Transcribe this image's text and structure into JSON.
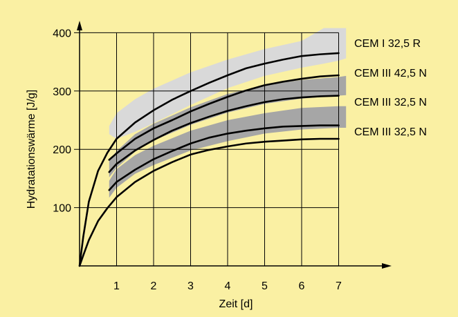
{
  "chart_data": {
    "type": "line",
    "title": "",
    "xlabel": "Zeit [d]",
    "ylabel": "Hydratationswärme [J/g]",
    "xlim": [
      0,
      7.5
    ],
    "ylim": [
      0,
      420
    ],
    "x_ticks": [
      {
        "value": 1,
        "label": "1"
      },
      {
        "value": 2,
        "label": "2"
      },
      {
        "value": 3,
        "label": "3"
      },
      {
        "value": 4,
        "label": "4"
      },
      {
        "value": 5,
        "label": "5"
      },
      {
        "value": 6,
        "label": "6"
      },
      {
        "value": 7,
        "label": "7"
      }
    ],
    "y_ticks": [
      {
        "value": 100,
        "label": "100"
      },
      {
        "value": 200,
        "label": "200"
      },
      {
        "value": 300,
        "label": "300"
      },
      {
        "value": 400,
        "label": "400"
      }
    ],
    "grid": true,
    "colors": {
      "background": "#faf0a3",
      "light_band": "#d9d9d9",
      "dark_band": "#a6a6a6",
      "line": "#000000"
    },
    "bands": [
      {
        "shade": "light",
        "x": [
          0.8,
          1,
          1.5,
          2,
          3,
          4,
          5,
          6,
          6.6,
          7,
          7.2
        ],
        "upper": [
          240,
          262,
          286,
          304,
          332,
          354,
          372,
          386,
          408,
          408,
          408
        ],
        "lower": [
          226,
          218,
          230,
          245,
          276,
          305,
          326,
          340,
          347,
          352,
          356
        ]
      },
      {
        "shade": "dark",
        "x": [
          0.8,
          1,
          1.5,
          2,
          3,
          4,
          5,
          6,
          7,
          7.2
        ],
        "upper": [
          180,
          197,
          226,
          244,
          272,
          295,
          310,
          319,
          324,
          326
        ],
        "lower": [
          152,
          168,
          196,
          215,
          242,
          263,
          278,
          287,
          292,
          293
        ]
      },
      {
        "shade": "dark",
        "x": [
          0.8,
          1,
          1.5,
          2,
          3,
          4,
          5,
          6,
          7,
          7.2
        ],
        "upper": [
          146,
          166,
          190,
          206,
          232,
          250,
          262,
          271,
          274,
          274
        ],
        "lower": [
          117,
          134,
          158,
          173,
          198,
          214,
          227,
          234,
          237,
          237
        ]
      }
    ],
    "series": [
      {
        "name": "CEM I 32,5 R",
        "x": [
          0,
          0.1,
          0.25,
          0.5,
          0.75,
          1,
          1.5,
          2,
          2.5,
          3,
          3.5,
          4,
          4.5,
          5,
          5.5,
          6,
          6.5,
          7
        ],
        "values": [
          0,
          50,
          110,
          163,
          194,
          218,
          246,
          267,
          285,
          300,
          314,
          327,
          339,
          347,
          354,
          360,
          363,
          365
        ]
      },
      {
        "name": "CEM III 42,5 N",
        "x": [
          0.8,
          1,
          1.5,
          2,
          2.5,
          3,
          3.5,
          4,
          4.5,
          5,
          5.5,
          6,
          6.5,
          7
        ],
        "values": [
          182,
          193,
          218,
          236,
          250,
          265,
          278,
          290,
          301,
          310,
          316,
          321,
          325,
          327
        ]
      },
      {
        "name": "CEM III 32,5 N",
        "x": [
          0.8,
          1,
          1.5,
          2,
          2.5,
          3,
          3.5,
          4,
          4.5,
          5,
          5.5,
          6,
          6.5,
          7
        ],
        "values": [
          161,
          175,
          198,
          216,
          232,
          245,
          256,
          266,
          274,
          281,
          286,
          289,
          291,
          292
        ]
      },
      {
        "name": "CEM III 32,5 N",
        "x": [
          0.8,
          1,
          1.5,
          2,
          2.5,
          3,
          3.5,
          4,
          4.5,
          5,
          5.5,
          6,
          6.5,
          7
        ],
        "values": [
          130,
          144,
          165,
          183,
          197,
          210,
          220,
          227,
          232,
          236,
          239,
          240,
          241,
          241
        ]
      },
      {
        "name": "",
        "x": [
          0,
          0.1,
          0.25,
          0.5,
          0.75,
          1,
          1.5,
          2,
          2.5,
          3,
          3.5,
          4,
          4.5,
          5,
          5.5,
          6,
          6.5,
          7
        ],
        "values": [
          0,
          18,
          44,
          77,
          99,
          118,
          144,
          163,
          178,
          191,
          199,
          205,
          210,
          213,
          215,
          217,
          218,
          218
        ]
      }
    ],
    "legend": "right"
  }
}
